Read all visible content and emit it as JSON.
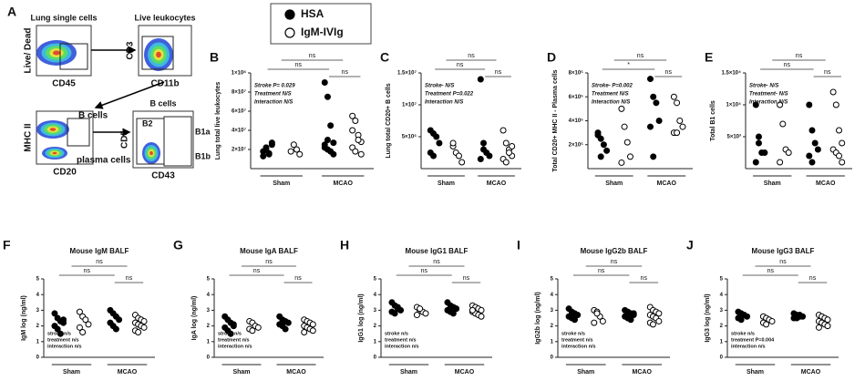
{
  "figure": {
    "legend": [
      {
        "name": "HSA",
        "marker": "filled"
      },
      {
        "name": "IgM-IVIg",
        "marker": "open"
      }
    ],
    "flow": {
      "panel": "A",
      "plots": [
        {
          "title": "Lung single cells",
          "ylabel": "Live/ Dead",
          "xlabel": "CD45",
          "gates": []
        },
        {
          "title": "Live leukocytes",
          "ylabel": "CD3",
          "xlabel": "CD11b",
          "gates": []
        },
        {
          "title": "",
          "ylabel": "MHC II",
          "xlabel": "CD20",
          "gates": [
            "B cells",
            "plasma cells"
          ]
        },
        {
          "title": "B cells",
          "ylabel": "CD5",
          "xlabel": "CD43",
          "gates": [
            "B2",
            "B1a",
            "B1b"
          ]
        }
      ]
    }
  },
  "chart_data": [
    {
      "type": "strip",
      "panel": "B",
      "ylabel": "Lung total live leukocytes",
      "categories": [
        "Sham",
        "MCAO"
      ],
      "stats": [
        "Stroke P= 0.029",
        "Treatment N/S",
        "Interaction N/S"
      ],
      "annotations": [
        "ns",
        "ns",
        "ns"
      ],
      "ylim": [
        0,
        100000000
      ],
      "yticks": [
        {
          "value": 20000000,
          "label": "2×10⁷"
        },
        {
          "value": 40000000,
          "label": "4×10⁷"
        },
        {
          "value": 60000000,
          "label": "6×10⁷"
        },
        {
          "value": 80000000,
          "label": "8×10⁷"
        },
        {
          "value": 100000000,
          "label": "1×10⁸"
        }
      ],
      "series": [
        {
          "marker": "filled",
          "values": [
            [
              18000000,
              22000000,
              15000000,
              25000000,
              13000000,
              20000000,
              16000000,
              27000000
            ],
            [
              90000000,
              75000000,
              45000000,
              27000000,
              25000000,
              20000000,
              18000000,
              15000000,
              22000000,
              30000000
            ]
          ]
        },
        {
          "marker": "open",
          "values": [
            [
              18000000,
              25000000,
              20000000,
              15000000
            ],
            [
              55000000,
              50000000,
              35000000,
              28000000,
              22000000,
              18000000,
              30000000,
              15000000,
              40000000
            ]
          ]
        }
      ]
    },
    {
      "type": "strip",
      "panel": "C",
      "ylabel": "Lung total CD20+ B cells",
      "categories": [
        "Sham",
        "MCAO"
      ],
      "stats": [
        "Stroke- N/S",
        "Treatment P=0.022",
        "Interaction N/S"
      ],
      "annotations": [
        "ns",
        "ns",
        "ns"
      ],
      "ylim": [
        0,
        15000000
      ],
      "yticks": [
        {
          "value": 5000000,
          "label": "5×10⁶"
        },
        {
          "value": 10000000,
          "label": "1×10⁷"
        },
        {
          "value": 15000000,
          "label": "1.5×10⁷"
        }
      ],
      "series": [
        {
          "marker": "filled",
          "values": [
            [
              6000000,
              5500000,
              5000000,
              4000000,
              2500000,
              2000000
            ],
            [
              14000000,
              4000000,
              2500000,
              2000000,
              1500000,
              3000000
            ]
          ]
        },
        {
          "marker": "open",
          "values": [
            [
              3500000,
              2500000,
              2000000,
              1000000,
              4000000
            ],
            [
              6000000,
              4000000,
              3000000,
              2000000,
              1500000,
              1000000,
              2500000,
              3500000
            ]
          ]
        }
      ]
    },
    {
      "type": "strip",
      "panel": "D",
      "ylabel": "Total CD20+ MHC II - Plasma cells",
      "categories": [
        "Sham",
        "MCAO"
      ],
      "stats": [
        "Stroke- P=0.002",
        "Treatment N/S",
        "Interaction N/S"
      ],
      "annotations": [
        "ns",
        "*",
        "ns"
      ],
      "ylim": [
        0,
        800000
      ],
      "yticks": [
        {
          "value": 200000,
          "label": "2×10⁵"
        },
        {
          "value": 400000,
          "label": "4×10⁵"
        },
        {
          "value": 600000,
          "label": "6×10⁵"
        },
        {
          "value": 800000,
          "label": "8×10⁵"
        }
      ],
      "series": [
        {
          "marker": "filled",
          "values": [
            [
              300000,
              250000,
              200000,
              150000,
              280000,
              100000
            ],
            [
              750000,
              600000,
              550000,
              400000,
              350000,
              100000
            ]
          ]
        },
        {
          "marker": "open",
          "values": [
            [
              500000,
              350000,
              220000,
              100000,
              50000
            ],
            [
              600000,
              550000,
              400000,
              350000,
              300000,
              300000
            ]
          ]
        }
      ]
    },
    {
      "type": "strip",
      "panel": "E",
      "ylabel": "Total B1 cells",
      "categories": [
        "Sham",
        "MCAO"
      ],
      "stats": [
        "Stroke- N/S",
        "Treatment- N/S",
        "Interaction N/S"
      ],
      "annotations": [
        "ns",
        "ns",
        "ns"
      ],
      "ylim": [
        0,
        15000
      ],
      "yticks": [
        {
          "value": 5000,
          "label": "5×10³"
        },
        {
          "value": 10000,
          "label": "1×10⁴"
        },
        {
          "value": 15000,
          "label": "1.5×10⁴"
        }
      ],
      "series": [
        {
          "marker": "filled",
          "values": [
            [
              10000,
              5000,
              2500,
              2500,
              1000,
              4000
            ],
            [
              10000,
              6000,
              4000,
              3000,
              2000,
              1000
            ]
          ]
        },
        {
          "marker": "open",
          "values": [
            [
              10000,
              7000,
              3000,
              2500,
              1000
            ],
            [
              12000,
              10000,
              6000,
              4000,
              3000,
              2500,
              2000,
              1000
            ]
          ]
        }
      ]
    },
    {
      "type": "strip",
      "panel": "F",
      "title": "Mouse IgM BALF",
      "ylabel": "IgM log (ng/ml)",
      "categories": [
        "Sham",
        "MCAO"
      ],
      "stats": [
        "stroke n/s",
        "treatment n/s",
        "interaction n/s"
      ],
      "annotations": [
        "ns",
        "ns",
        "ns"
      ],
      "ylim": [
        0,
        5
      ],
      "yticks": [
        0,
        1,
        2,
        3,
        4,
        5
      ],
      "series": [
        {
          "marker": "filled",
          "values": [
            [
              2.8,
              2.5,
              2.3,
              2.2,
              2.0,
              1.8,
              1.5,
              2.4
            ],
            [
              3.0,
              2.8,
              2.6,
              2.4,
              2.2,
              2.0,
              1.8
            ]
          ]
        },
        {
          "marker": "open",
          "values": [
            [
              2.9,
              2.6,
              2.4,
              2.1,
              1.9,
              1.6
            ],
            [
              2.7,
              2.5,
              2.4,
              2.3,
              2.2,
              2.1,
              2.0,
              1.9,
              1.7,
              1.6
            ]
          ]
        }
      ]
    },
    {
      "type": "strip",
      "panel": "G",
      "title": "Mouse IgA BALF",
      "ylabel": "IgA log (ng/ml)",
      "categories": [
        "Sham",
        "MCAO"
      ],
      "stats": [
        "stroke n/s",
        "treatment n/s",
        "interaction n/s"
      ],
      "annotations": [
        "ns",
        "ns",
        "ns"
      ],
      "ylim": [
        0,
        5
      ],
      "yticks": [
        0,
        1,
        2,
        3,
        4,
        5
      ],
      "series": [
        {
          "marker": "filled",
          "values": [
            [
              2.6,
              2.4,
              2.2,
              2.0,
              1.9,
              1.7,
              1.5,
              2.1
            ],
            [
              2.6,
              2.4,
              2.3,
              2.2,
              2.1,
              2.0,
              1.8
            ]
          ]
        },
        {
          "marker": "open",
          "values": [
            [
              2.3,
              2.2,
              2.0,
              1.9,
              1.8,
              1.7
            ],
            [
              2.4,
              2.3,
              2.2,
              2.1,
              2.0,
              1.9,
              1.8,
              1.7,
              1.6
            ]
          ]
        }
      ]
    },
    {
      "type": "strip",
      "panel": "H",
      "title": "Mouse IgG1 BALF",
      "ylabel": "IgG1 log (ng/ml)",
      "categories": [
        "Sham",
        "MCAO"
      ],
      "stats": [
        "stroke n/s",
        "treatment n/s",
        "interaction n/s"
      ],
      "annotations": [
        "ns",
        "ns",
        "ns"
      ],
      "ylim": [
        0,
        5
      ],
      "yticks": [
        0,
        1,
        2,
        3,
        4,
        5
      ],
      "series": [
        {
          "marker": "filled",
          "values": [
            [
              3.5,
              3.3,
              3.1,
              3.0,
              2.9,
              2.8,
              3.2
            ],
            [
              3.5,
              3.3,
              3.2,
              3.1,
              3.0,
              2.9,
              2.8,
              3.1
            ]
          ]
        },
        {
          "marker": "open",
          "values": [
            [
              3.2,
              3.0,
              2.9,
              2.8,
              2.7,
              3.1
            ],
            [
              3.3,
              3.2,
              3.1,
              3.0,
              2.9,
              2.8,
              2.7,
              2.6,
              3.0
            ]
          ]
        }
      ]
    },
    {
      "type": "strip",
      "panel": "I",
      "title": "Mouse IgG2b BALF",
      "ylabel": "IgG2b log (ng/ml)",
      "categories": [
        "Sham",
        "MCAO"
      ],
      "stats": [
        "stroke n/s",
        "treatment n/s",
        "interaction n/s"
      ],
      "annotations": [
        "ns",
        "ns",
        "ns"
      ],
      "ylim": [
        0,
        5
      ],
      "yticks": [
        0,
        1,
        2,
        3,
        4,
        5
      ],
      "series": [
        {
          "marker": "filled",
          "values": [
            [
              3.1,
              2.9,
              2.8,
              2.7,
              2.6,
              2.5,
              2.4
            ],
            [
              3.0,
              2.9,
              2.8,
              2.7,
              2.6,
              2.5,
              2.4,
              2.8
            ]
          ]
        },
        {
          "marker": "open",
          "values": [
            [
              3.0,
              2.9,
              2.6,
              2.3,
              2.2,
              2.8
            ],
            [
              3.2,
              3.0,
              2.9,
              2.8,
              2.7,
              2.6,
              2.5,
              2.3,
              2.2,
              2.1
            ]
          ]
        }
      ]
    },
    {
      "type": "strip",
      "panel": "J",
      "title": "Mouse IgG3 BALF",
      "ylabel": "IgG3 log (ng/ml)",
      "categories": [
        "Sham",
        "MCAO"
      ],
      "stats": [
        "stroke n/s",
        "treatment P=0.004",
        "interaction n/s"
      ],
      "annotations": [
        "ns",
        "ns",
        "ns"
      ],
      "ylim": [
        0,
        5
      ],
      "yticks": [
        0,
        1,
        2,
        3,
        4,
        5
      ],
      "series": [
        {
          "marker": "filled",
          "values": [
            [
              2.9,
              2.8,
              2.7,
              2.6,
              2.5,
              2.4,
              2.7
            ],
            [
              2.8,
              2.7,
              2.6,
              2.6,
              2.5,
              2.5,
              2.7
            ]
          ]
        },
        {
          "marker": "open",
          "values": [
            [
              2.6,
              2.5,
              2.4,
              2.3,
              2.2,
              2.1
            ],
            [
              2.7,
              2.6,
              2.5,
              2.4,
              2.3,
              2.2,
              2.1,
              2.0,
              1.9
            ]
          ]
        }
      ]
    }
  ]
}
